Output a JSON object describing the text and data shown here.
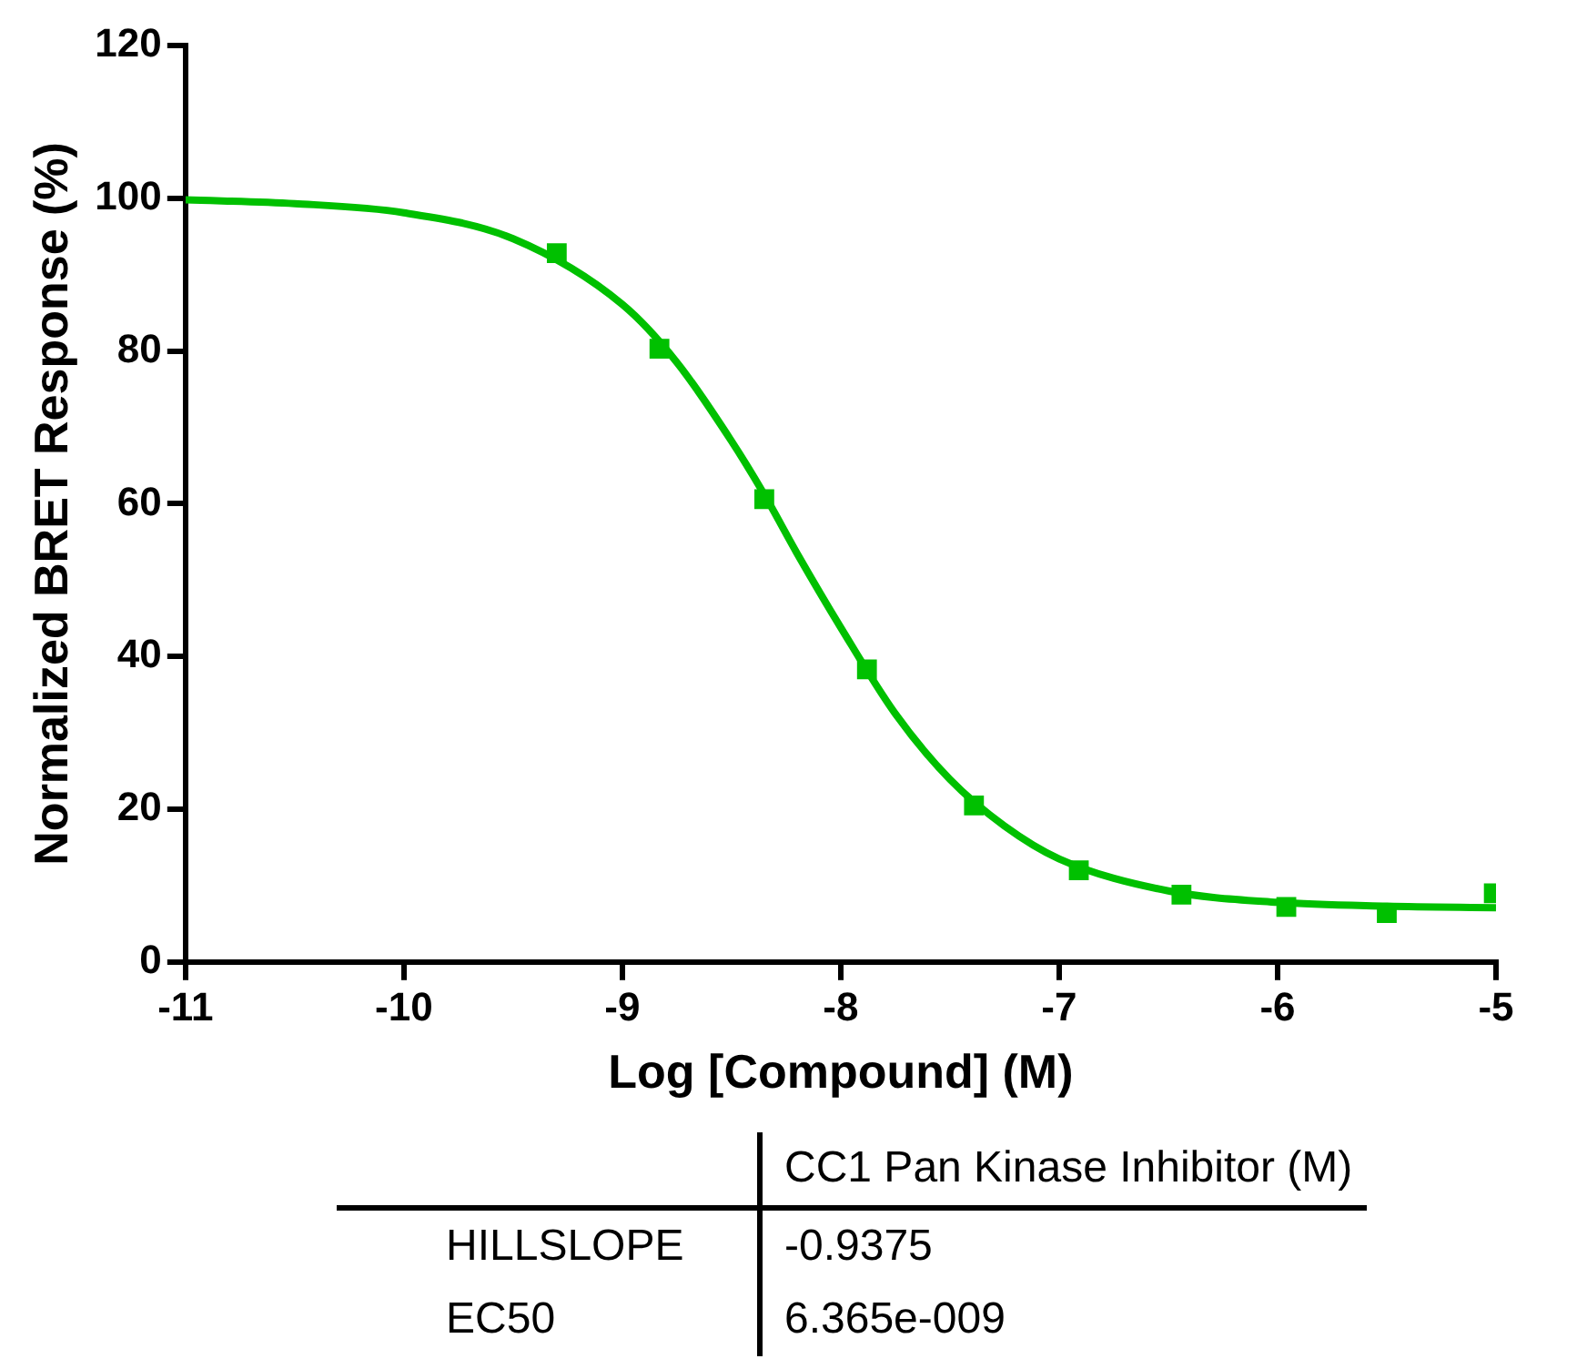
{
  "chart_data": {
    "type": "scatter",
    "xlabel": "Log [Compound] (M)",
    "ylabel": "Normalized BRET Response (%)",
    "xlim": [
      -11,
      -5
    ],
    "xticks": [
      -11,
      -10,
      -9,
      -8,
      -7,
      -6,
      -5
    ],
    "ylim": [
      0,
      120
    ],
    "yticks": [
      0,
      20,
      40,
      60,
      80,
      100,
      120
    ],
    "grid": false,
    "legend": false,
    "marker": "square",
    "series": [
      {
        "type": "scatter",
        "color": "#00c000",
        "x": [
          -9.3,
          -8.83,
          -8.35,
          -7.88,
          -7.39,
          -6.91,
          -6.44,
          -5.96,
          -5.5,
          -5.01
        ],
        "values": [
          92.8,
          80.3,
          60.6,
          38.3,
          20.5,
          12.0,
          8.8,
          7.2,
          6.4,
          9.0
        ]
      },
      {
        "type": "line",
        "color": "#00c000",
        "marker": "none",
        "x": [
          -11,
          -10.5,
          -10,
          -9.5,
          -9,
          -8.75,
          -8.5,
          -8.35,
          -8.2,
          -8,
          -7.75,
          -7.5,
          -7.25,
          -7,
          -6.5,
          -6,
          -5.5,
          -5
        ],
        "values": [
          99.8,
          99.3,
          98.1,
          94.7,
          86.1,
          78.5,
          68.2,
          61.2,
          53.5,
          43.8,
          32.5,
          23.9,
          17.8,
          13.5,
          9.3,
          7.8,
          7.3,
          7.1
        ]
      }
    ],
    "annotations": [
      "CC1 Pan Kinase Inhibitor (M)",
      "HILLSLOPE",
      "-0.9375",
      "EC50",
      "6.365e-009"
    ]
  }
}
